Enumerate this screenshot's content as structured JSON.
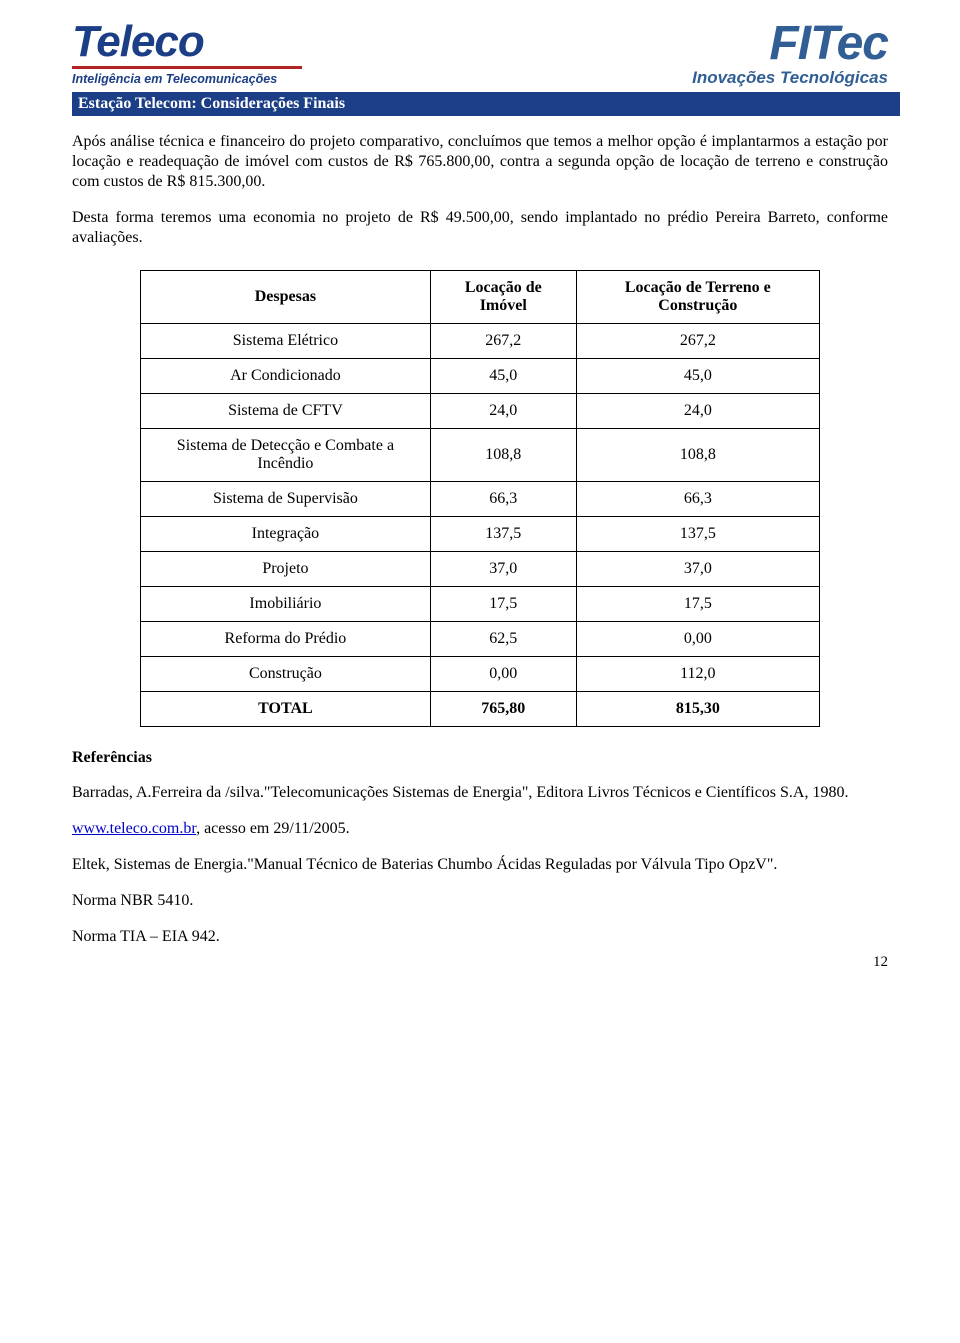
{
  "logos": {
    "teleco_brand": "Teleco",
    "teleco_tagline": "Inteligência em Telecomunicações",
    "fitec_brand": "FITec",
    "fitec_tagline": "Inovações Tecnológicas"
  },
  "section_title": "Estação Telecom: Considerações Finais",
  "paragraph1": "Após análise técnica e financeiro do projeto comparativo, concluímos que temos a melhor opção é implantarmos a estação por locação e readequação de imóvel com custos de R$ 765.800,00, contra a segunda opção de locação de terreno e construção com custos de R$ 815.300,00.",
  "paragraph2": "Desta forma teremos uma economia no projeto de R$ 49.500,00, sendo implantado no prédio Pereira Barreto, conforme avaliações.",
  "table": {
    "columns": [
      "Despesas",
      "Locação de Imóvel",
      "Locação de Terreno e Construção"
    ],
    "rows": [
      {
        "label": "Sistema Elétrico",
        "c1": "267,2",
        "c2": "267,2"
      },
      {
        "label": "Ar Condicionado",
        "c1": "45,0",
        "c2": "45,0"
      },
      {
        "label": "Sistema de CFTV",
        "c1": "24,0",
        "c2": "24,0"
      },
      {
        "label": "Sistema de Detecção e Combate a Incêndio",
        "c1": "108,8",
        "c2": "108,8"
      },
      {
        "label": "Sistema de Supervisão",
        "c1": "66,3",
        "c2": "66,3"
      },
      {
        "label": "Integração",
        "c1": "137,5",
        "c2": "137,5"
      },
      {
        "label": "Projeto",
        "c1": "37,0",
        "c2": "37,0"
      },
      {
        "label": "Imobiliário",
        "c1": "17,5",
        "c2": "17,5"
      },
      {
        "label": "Reforma do Prédio",
        "c1": "62,5",
        "c2": "0,00"
      },
      {
        "label": "Construção",
        "c1": "0,00",
        "c2": "112,0"
      }
    ],
    "total": {
      "label": "TOTAL",
      "c1": "765,80",
      "c2": "815,30"
    }
  },
  "references_heading": "Referências",
  "references": {
    "r1": "Barradas, A.Ferreira da /silva.\"Telecomunicações Sistemas de Energia\", Editora Livros Técnicos e Científicos S.A, 1980.",
    "r2_link": "www.teleco.com.br",
    "r2_tail": ", acesso em 29/11/2005.",
    "r3": "Eltek, Sistemas de Energia.\"Manual Técnico de Baterias Chumbo Ácidas Reguladas por Válvula Tipo OpzV\".",
    "r4": "Norma NBR 5410.",
    "r5": "Norma TIA – EIA 942."
  },
  "page_number": "12"
}
